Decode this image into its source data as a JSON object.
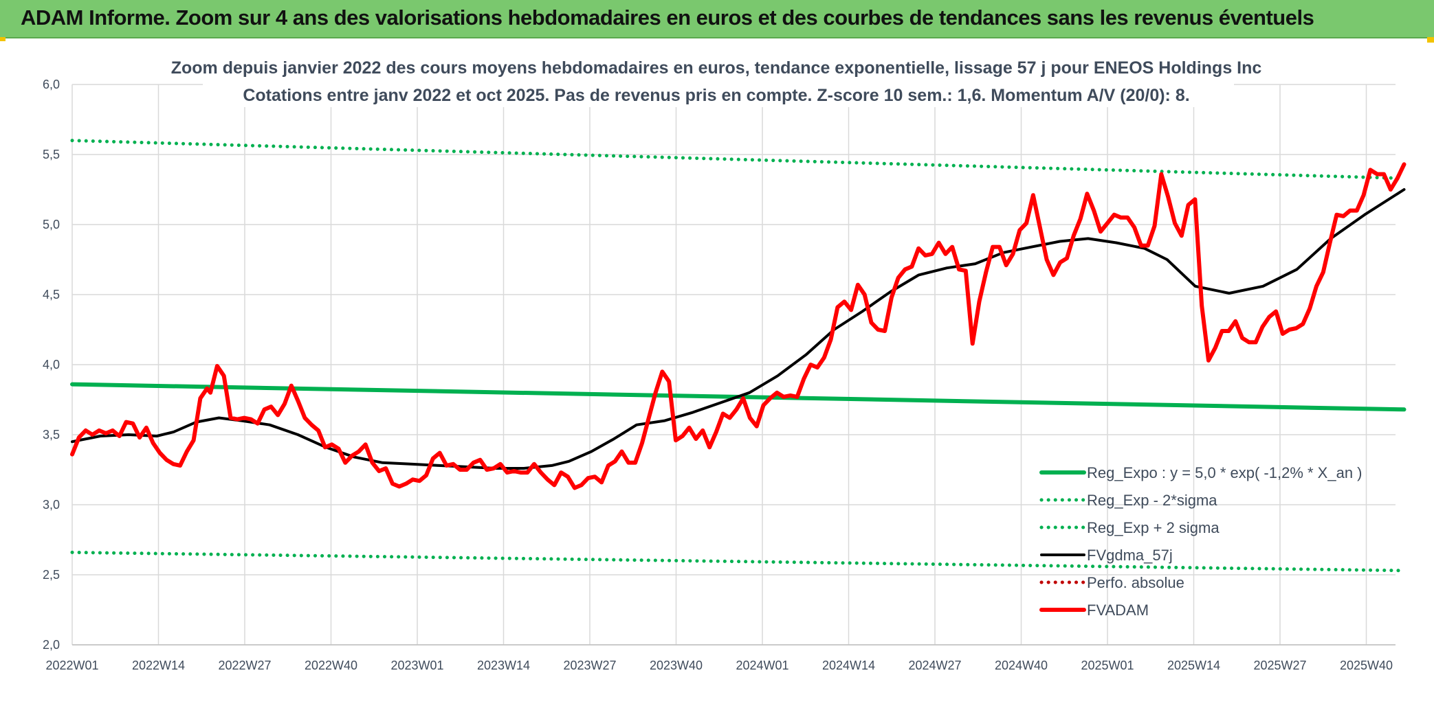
{
  "banner": {
    "title": "ADAM Informe. Zoom sur 4 ans des valorisations hebdomadaires en euros et des courbes de tendances sans les revenus éventuels"
  },
  "colors": {
    "banner_bg": "#7ac86e",
    "trend": "#00b050",
    "moving_average": "#000000",
    "price": "#ff0000",
    "perf": "#c00000"
  },
  "chart_data": {
    "type": "line",
    "title": "Zoom depuis janvier 2022 des cours moyens hebdomadaires en euros, tendance exponentielle, lissage 57 j pour ENEOS Holdings Inc",
    "subtitle": "Cotations entre janv 2022 et oct 2025. Pas de revenus pris en compte. Z-score 10 sem.: 1,6. Momentum A/V (20/0): 8.",
    "xlabel": "",
    "ylabel": "",
    "ylim": [
      2.0,
      6.0
    ],
    "yticks": [
      "6,0",
      "5,5",
      "5,0",
      "4,5",
      "4,0",
      "3,5",
      "3,0",
      "2,5",
      "2,0"
    ],
    "xticks": [
      "2022W01",
      "2022W14",
      "2022W27",
      "2022W40",
      "2023W01",
      "2023W14",
      "2023W27",
      "2023W40",
      "2024W01",
      "2024W14",
      "2024W27",
      "2024W40",
      "2025W01",
      "2025W14",
      "2025W27",
      "2025W40"
    ],
    "x_range_weeks": [
      0,
      201
    ],
    "grid": true,
    "legend_position": "bottom-right",
    "series": [
      {
        "name": "Reg_Expo : y = 5,0 * exp( -1,2% *  X_an )",
        "style": "solid",
        "color": "#00b050",
        "points": [
          [
            0,
            3.86
          ],
          [
            201,
            3.68
          ]
        ]
      },
      {
        "name": "Reg_Exp - 2*sigma",
        "style": "dotted",
        "color": "#00b050",
        "points": [
          [
            0,
            2.66
          ],
          [
            201,
            2.53
          ]
        ]
      },
      {
        "name": "Reg_Exp + 2 sigma",
        "style": "dotted",
        "color": "#00b050",
        "points": [
          [
            0,
            5.6
          ],
          [
            201,
            5.33
          ]
        ]
      },
      {
        "name": "FVgdma_57j",
        "style": "solid",
        "color": "#000000",
        "points": [
          [
            0,
            3.45
          ],
          [
            5,
            3.49
          ],
          [
            10,
            3.5
          ],
          [
            15,
            3.49
          ],
          [
            18,
            3.52
          ],
          [
            22,
            3.59
          ],
          [
            26,
            3.62
          ],
          [
            30,
            3.6
          ],
          [
            35,
            3.57
          ],
          [
            40,
            3.5
          ],
          [
            45,
            3.41
          ],
          [
            50,
            3.34
          ],
          [
            55,
            3.3
          ],
          [
            60,
            3.29
          ],
          [
            65,
            3.28
          ],
          [
            70,
            3.27
          ],
          [
            75,
            3.26
          ],
          [
            80,
            3.26
          ],
          [
            85,
            3.28
          ],
          [
            88,
            3.31
          ],
          [
            92,
            3.38
          ],
          [
            96,
            3.47
          ],
          [
            100,
            3.57
          ],
          [
            105,
            3.6
          ],
          [
            110,
            3.66
          ],
          [
            115,
            3.73
          ],
          [
            120,
            3.8
          ],
          [
            125,
            3.92
          ],
          [
            130,
            4.07
          ],
          [
            135,
            4.25
          ],
          [
            140,
            4.38
          ],
          [
            145,
            4.52
          ],
          [
            150,
            4.64
          ],
          [
            155,
            4.69
          ],
          [
            160,
            4.72
          ],
          [
            165,
            4.8
          ],
          [
            170,
            4.84
          ],
          [
            175,
            4.88
          ],
          [
            180,
            4.9
          ],
          [
            185,
            4.87
          ],
          [
            190,
            4.83
          ],
          [
            194,
            4.75
          ],
          [
            199,
            4.56
          ],
          [
            205,
            4.51
          ],
          [
            211,
            4.56
          ],
          [
            217,
            4.68
          ],
          [
            223,
            4.9
          ],
          [
            229,
            5.07
          ],
          [
            236,
            5.25
          ]
        ]
      },
      {
        "name": "Perfo. absolue",
        "style": "dotted",
        "color": "#c00000",
        "points": []
      },
      {
        "name": "FVADAM",
        "style": "solid",
        "color": "#ff0000",
        "points": [
          [
            0,
            3.36
          ],
          [
            2,
            3.48
          ],
          [
            4,
            3.53
          ],
          [
            6,
            3.5
          ],
          [
            8,
            3.53
          ],
          [
            10,
            3.51
          ],
          [
            12,
            3.53
          ],
          [
            14,
            3.49
          ],
          [
            16,
            3.59
          ],
          [
            18,
            3.58
          ],
          [
            20,
            3.48
          ],
          [
            22,
            3.55
          ],
          [
            24,
            3.44
          ],
          [
            26,
            3.37
          ],
          [
            28,
            3.32
          ],
          [
            30,
            3.29
          ],
          [
            32,
            3.28
          ],
          [
            34,
            3.38
          ],
          [
            36,
            3.46
          ],
          [
            38,
            3.76
          ],
          [
            40,
            3.83
          ],
          [
            41,
            3.8
          ],
          [
            43,
            3.99
          ],
          [
            45,
            3.92
          ],
          [
            47,
            3.62
          ],
          [
            49,
            3.61
          ],
          [
            51,
            3.62
          ],
          [
            53,
            3.61
          ],
          [
            55,
            3.58
          ],
          [
            57,
            3.68
          ],
          [
            59,
            3.7
          ],
          [
            61,
            3.64
          ],
          [
            63,
            3.72
          ],
          [
            65,
            3.85
          ],
          [
            67,
            3.74
          ],
          [
            69,
            3.62
          ],
          [
            71,
            3.57
          ],
          [
            73,
            3.53
          ],
          [
            75,
            3.41
          ],
          [
            77,
            3.43
          ],
          [
            79,
            3.4
          ],
          [
            81,
            3.3
          ],
          [
            83,
            3.35
          ],
          [
            85,
            3.38
          ],
          [
            87,
            3.43
          ],
          [
            89,
            3.3
          ],
          [
            91,
            3.24
          ],
          [
            93,
            3.26
          ],
          [
            95,
            3.15
          ],
          [
            97,
            3.13
          ],
          [
            99,
            3.15
          ],
          [
            101,
            3.18
          ],
          [
            103,
            3.17
          ],
          [
            105,
            3.21
          ],
          [
            107,
            3.33
          ],
          [
            109,
            3.37
          ],
          [
            111,
            3.28
          ],
          [
            113,
            3.29
          ],
          [
            115,
            3.25
          ],
          [
            117,
            3.25
          ],
          [
            119,
            3.3
          ],
          [
            121,
            3.32
          ],
          [
            123,
            3.25
          ],
          [
            125,
            3.26
          ],
          [
            127,
            3.29
          ],
          [
            129,
            3.23
          ],
          [
            131,
            3.24
          ],
          [
            133,
            3.23
          ],
          [
            135,
            3.23
          ],
          [
            137,
            3.29
          ],
          [
            139,
            3.23
          ],
          [
            141,
            3.18
          ],
          [
            143,
            3.14
          ],
          [
            145,
            3.23
          ],
          [
            147,
            3.2
          ],
          [
            149,
            3.12
          ],
          [
            151,
            3.14
          ],
          [
            153,
            3.19
          ],
          [
            155,
            3.2
          ],
          [
            157,
            3.16
          ],
          [
            159,
            3.28
          ],
          [
            161,
            3.31
          ],
          [
            163,
            3.38
          ],
          [
            165,
            3.3
          ],
          [
            167,
            3.3
          ],
          [
            169,
            3.44
          ],
          [
            171,
            3.62
          ],
          [
            173,
            3.8
          ],
          [
            175,
            3.95
          ],
          [
            177,
            3.88
          ],
          [
            179,
            3.46
          ],
          [
            181,
            3.49
          ],
          [
            183,
            3.55
          ],
          [
            185,
            3.47
          ],
          [
            187,
            3.53
          ],
          [
            189,
            3.41
          ],
          [
            191,
            3.52
          ],
          [
            193,
            3.65
          ],
          [
            195,
            3.62
          ],
          [
            197,
            3.68
          ],
          [
            199,
            3.76
          ],
          [
            201,
            3.62
          ],
          [
            203,
            3.56
          ],
          [
            205,
            3.71
          ],
          [
            207,
            3.76
          ],
          [
            209,
            3.8
          ],
          [
            211,
            3.77
          ],
          [
            213,
            3.78
          ],
          [
            215,
            3.77
          ],
          [
            217,
            3.9
          ],
          [
            219,
            4.0
          ],
          [
            221,
            3.98
          ],
          [
            223,
            4.05
          ],
          [
            225,
            4.18
          ],
          [
            227,
            4.41
          ],
          [
            229,
            4.45
          ],
          [
            231,
            4.39
          ],
          [
            233,
            4.57
          ],
          [
            235,
            4.5
          ],
          [
            237,
            4.3
          ],
          [
            239,
            4.25
          ],
          [
            241,
            4.24
          ],
          [
            243,
            4.48
          ],
          [
            245,
            4.62
          ],
          [
            247,
            4.68
          ],
          [
            249,
            4.7
          ],
          [
            251,
            4.83
          ],
          [
            253,
            4.78
          ],
          [
            255,
            4.79
          ],
          [
            257,
            4.87
          ],
          [
            259,
            4.79
          ],
          [
            261,
            4.84
          ],
          [
            263,
            4.68
          ],
          [
            265,
            4.67
          ],
          [
            267,
            4.15
          ],
          [
            269,
            4.45
          ],
          [
            271,
            4.66
          ],
          [
            273,
            4.84
          ],
          [
            275,
            4.84
          ],
          [
            277,
            4.71
          ],
          [
            279,
            4.79
          ],
          [
            281,
            4.96
          ],
          [
            283,
            5.01
          ],
          [
            285,
            5.21
          ],
          [
            287,
            4.98
          ],
          [
            289,
            4.75
          ],
          [
            291,
            4.64
          ],
          [
            293,
            4.73
          ],
          [
            295,
            4.76
          ],
          [
            297,
            4.92
          ],
          [
            299,
            5.04
          ],
          [
            301,
            5.22
          ],
          [
            303,
            5.1
          ],
          [
            305,
            4.95
          ],
          [
            307,
            5.01
          ],
          [
            309,
            5.07
          ],
          [
            311,
            5.05
          ],
          [
            313,
            5.05
          ],
          [
            315,
            4.98
          ],
          [
            317,
            4.85
          ],
          [
            319,
            4.85
          ],
          [
            321,
            4.99
          ],
          [
            323,
            5.36
          ],
          [
            325,
            5.2
          ],
          [
            327,
            5.01
          ],
          [
            329,
            4.92
          ],
          [
            331,
            5.14
          ],
          [
            333,
            5.18
          ],
          [
            335,
            4.42
          ],
          [
            337,
            4.03
          ],
          [
            339,
            4.12
          ],
          [
            341,
            4.24
          ],
          [
            343,
            4.24
          ],
          [
            345,
            4.31
          ],
          [
            347,
            4.19
          ],
          [
            349,
            4.16
          ],
          [
            351,
            4.16
          ],
          [
            353,
            4.27
          ],
          [
            355,
            4.34
          ],
          [
            357,
            4.38
          ],
          [
            359,
            4.22
          ],
          [
            361,
            4.25
          ],
          [
            363,
            4.26
          ],
          [
            365,
            4.29
          ],
          [
            367,
            4.4
          ],
          [
            369,
            4.56
          ],
          [
            371,
            4.66
          ],
          [
            373,
            4.87
          ],
          [
            375,
            5.07
          ],
          [
            377,
            5.06
          ],
          [
            379,
            5.1
          ],
          [
            381,
            5.1
          ],
          [
            383,
            5.21
          ],
          [
            385,
            5.39
          ],
          [
            387,
            5.36
          ],
          [
            389,
            5.36
          ],
          [
            391,
            5.25
          ],
          [
            393,
            5.33
          ],
          [
            395,
            5.43
          ]
        ]
      }
    ]
  },
  "legend": {
    "items": [
      {
        "label": "Reg_Expo : y = 5,0 * exp( -1,2% *  X_an )"
      },
      {
        "label": "Reg_Exp - 2*sigma"
      },
      {
        "label": "Reg_Exp + 2 sigma"
      },
      {
        "label": "FVgdma_57j"
      },
      {
        "label": "Perfo. absolue"
      },
      {
        "label": "FVADAM"
      }
    ]
  }
}
